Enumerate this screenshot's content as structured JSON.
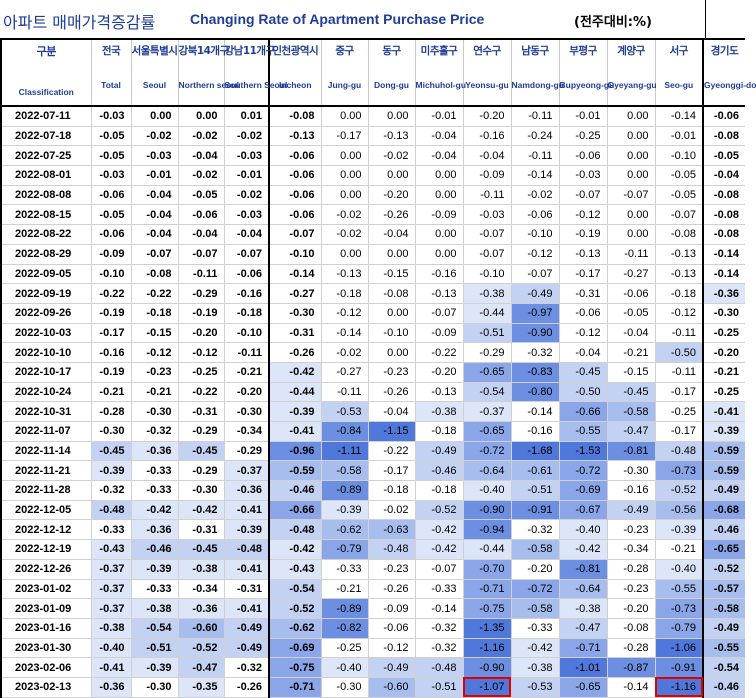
{
  "title": {
    "korean": "아파트 매매가격증감률",
    "english": "Changing Rate of Apartment Purchase Price",
    "unit": "(전주대비:%)"
  },
  "columns": [
    {
      "key": "date",
      "kr": "구분",
      "en": "Classification"
    },
    {
      "key": "national",
      "kr": "전국",
      "en": "Total"
    },
    {
      "key": "seoul",
      "kr": "서울특별시",
      "en": "Seoul"
    },
    {
      "key": "gangbuk",
      "kr": "강북14개구",
      "en": "Northern seoul"
    },
    {
      "key": "gangnam",
      "kr": "강남11개구",
      "en": "Southern Seoul"
    },
    {
      "key": "incheon",
      "kr": "인천광역시",
      "en": "Incheon"
    },
    {
      "key": "junggu",
      "kr": "중구",
      "en": "Jung-gu"
    },
    {
      "key": "donggu",
      "kr": "동구",
      "en": "Dong-gu"
    },
    {
      "key": "michuhol",
      "kr": "미추홀구",
      "en": "Michuhol-gu"
    },
    {
      "key": "yeonsu",
      "kr": "연수구",
      "en": "Yeonsu-gu"
    },
    {
      "key": "namdong",
      "kr": "남동구",
      "en": "Namdong-gu"
    },
    {
      "key": "bupyeong",
      "kr": "부평구",
      "en": "Bupyeong-gu"
    },
    {
      "key": "gyeyang",
      "kr": "계양구",
      "en": "Gyeyang-gu"
    },
    {
      "key": "seogu",
      "kr": "서구",
      "en": "Seo-gu"
    },
    {
      "key": "gyeonggi",
      "kr": "경기도",
      "en": "Gyeonggi-do"
    }
  ],
  "colors": {
    "header_text": "#1f3d99",
    "highlight_border": "#e00000",
    "heat_scale": [
      "#ffffff",
      "#dde6f8",
      "#c3d2f3",
      "#a6bdee",
      "#8aa6e8",
      "#6d8fe2",
      "#5078db"
    ]
  },
  "rows": [
    {
      "date": "2022-07-11",
      "values": [
        "-0.03",
        "0.00",
        "0.00",
        "0.01",
        "-0.08",
        "0.00",
        "0.00",
        "-0.01",
        "-0.20",
        "-0.11",
        "-0.01",
        "0.00",
        "-0.14",
        "-0.06"
      ]
    },
    {
      "date": "2022-07-18",
      "values": [
        "-0.05",
        "-0.02",
        "-0.02",
        "-0.02",
        "-0.13",
        "-0.17",
        "-0.13",
        "-0.04",
        "-0.16",
        "-0.24",
        "-0.25",
        "0.00",
        "-0.01",
        "-0.08"
      ]
    },
    {
      "date": "2022-07-25",
      "values": [
        "-0.05",
        "-0.03",
        "-0.04",
        "-0.03",
        "-0.06",
        "0.00",
        "-0.02",
        "-0.04",
        "-0.04",
        "-0.11",
        "-0.06",
        "0.00",
        "-0.10",
        "-0.05"
      ]
    },
    {
      "date": "2022-08-01",
      "values": [
        "-0.03",
        "-0.01",
        "-0.02",
        "-0.01",
        "-0.06",
        "0.00",
        "0.00",
        "0.00",
        "-0.09",
        "-0.14",
        "-0.03",
        "0.00",
        "-0.05",
        "-0.04"
      ]
    },
    {
      "date": "2022-08-08",
      "values": [
        "-0.06",
        "-0.04",
        "-0.05",
        "-0.02",
        "-0.06",
        "0.00",
        "-0.20",
        "0.00",
        "-0.11",
        "-0.02",
        "-0.07",
        "-0.07",
        "-0.05",
        "-0.08"
      ]
    },
    {
      "date": "2022-08-15",
      "values": [
        "-0.05",
        "-0.04",
        "-0.06",
        "-0.03",
        "-0.06",
        "-0.02",
        "-0.26",
        "-0.09",
        "-0.03",
        "-0.06",
        "-0.12",
        "0.00",
        "-0.07",
        "-0.08"
      ]
    },
    {
      "date": "2022-08-22",
      "values": [
        "-0.06",
        "-0.04",
        "-0.04",
        "-0.04",
        "-0.07",
        "-0.02",
        "-0.04",
        "0.00",
        "-0.07",
        "-0.10",
        "-0.19",
        "0.00",
        "-0.08",
        "-0.08"
      ]
    },
    {
      "date": "2022-08-29",
      "values": [
        "-0.09",
        "-0.07",
        "-0.07",
        "-0.07",
        "-0.10",
        "0.00",
        "0.00",
        "0.00",
        "-0.07",
        "-0.12",
        "-0.13",
        "-0.11",
        "-0.13",
        "-0.14"
      ]
    },
    {
      "date": "2022-09-05",
      "values": [
        "-0.10",
        "-0.08",
        "-0.11",
        "-0.06",
        "-0.14",
        "-0.13",
        "-0.15",
        "-0.16",
        "-0.10",
        "-0.07",
        "-0.17",
        "-0.27",
        "-0.13",
        "-0.14"
      ]
    },
    {
      "date": "2022-09-19",
      "values": [
        "-0.22",
        "-0.22",
        "-0.29",
        "-0.16",
        "-0.27",
        "-0.18",
        "-0.08",
        "-0.13",
        "-0.38",
        "-0.49",
        "-0.31",
        "-0.06",
        "-0.18",
        "-0.36"
      ]
    },
    {
      "date": "2022-09-26",
      "values": [
        "-0.19",
        "-0.18",
        "-0.19",
        "-0.18",
        "-0.30",
        "-0.12",
        "0.00",
        "-0.07",
        "-0.44",
        "-0.97",
        "-0.06",
        "-0.05",
        "-0.12",
        "-0.30"
      ]
    },
    {
      "date": "2022-10-03",
      "values": [
        "-0.17",
        "-0.15",
        "-0.20",
        "-0.10",
        "-0.31",
        "-0.14",
        "-0.10",
        "-0.09",
        "-0.51",
        "-0.90",
        "-0.12",
        "-0.04",
        "-0.11",
        "-0.25"
      ]
    },
    {
      "date": "2022-10-10",
      "values": [
        "-0.16",
        "-0.12",
        "-0.12",
        "-0.11",
        "-0.26",
        "-0.02",
        "0.00",
        "-0.22",
        "-0.29",
        "-0.32",
        "-0.04",
        "-0.21",
        "-0.50",
        "-0.20"
      ]
    },
    {
      "date": "2022-10-17",
      "values": [
        "-0.19",
        "-0.23",
        "-0.25",
        "-0.21",
        "-0.42",
        "-0.27",
        "-0.23",
        "-0.20",
        "-0.65",
        "-0.83",
        "-0.45",
        "-0.15",
        "-0.11",
        "-0.21"
      ]
    },
    {
      "date": "2022-10-24",
      "values": [
        "-0.21",
        "-0.21",
        "-0.22",
        "-0.20",
        "-0.44",
        "-0.11",
        "-0.26",
        "-0.13",
        "-0.54",
        "-0.80",
        "-0.50",
        "-0.45",
        "-0.17",
        "-0.25"
      ]
    },
    {
      "date": "2022-10-31",
      "values": [
        "-0.28",
        "-0.30",
        "-0.31",
        "-0.30",
        "-0.39",
        "-0.53",
        "-0.04",
        "-0.38",
        "-0.37",
        "-0.14",
        "-0.66",
        "-0.58",
        "-0.25",
        "-0.41"
      ]
    },
    {
      "date": "2022-11-07",
      "values": [
        "-0.30",
        "-0.32",
        "-0.29",
        "-0.34",
        "-0.41",
        "-0.84",
        "-1.15",
        "-0.18",
        "-0.65",
        "-0.16",
        "-0.55",
        "-0.47",
        "-0.17",
        "-0.39"
      ]
    },
    {
      "date": "2022-11-14",
      "values": [
        "-0.45",
        "-0.36",
        "-0.45",
        "-0.29",
        "-0.96",
        "-1.11",
        "-0.22",
        "-0.49",
        "-0.72",
        "-1.68",
        "-1.53",
        "-0.81",
        "-0.48",
        "-0.59"
      ]
    },
    {
      "date": "2022-11-21",
      "values": [
        "-0.39",
        "-0.33",
        "-0.29",
        "-0.37",
        "-0.59",
        "-0.58",
        "-0.17",
        "-0.46",
        "-0.64",
        "-0.61",
        "-0.72",
        "-0.30",
        "-0.73",
        "-0.59"
      ]
    },
    {
      "date": "2022-11-28",
      "values": [
        "-0.32",
        "-0.33",
        "-0.30",
        "-0.36",
        "-0.46",
        "-0.89",
        "-0.18",
        "-0.18",
        "-0.40",
        "-0.51",
        "-0.69",
        "-0.16",
        "-0.52",
        "-0.49"
      ]
    },
    {
      "date": "2022-12-05",
      "values": [
        "-0.48",
        "-0.42",
        "-0.42",
        "-0.41",
        "-0.66",
        "-0.39",
        "-0.02",
        "-0.52",
        "-0.90",
        "-0.91",
        "-0.67",
        "-0.49",
        "-0.56",
        "-0.68"
      ]
    },
    {
      "date": "2022-12-12",
      "values": [
        "-0.33",
        "-0.36",
        "-0.31",
        "-0.39",
        "-0.48",
        "-0.62",
        "-0.63",
        "-0.42",
        "-0.94",
        "-0.32",
        "-0.40",
        "-0.23",
        "-0.39",
        "-0.46"
      ]
    },
    {
      "date": "2022-12-19",
      "values": [
        "-0.43",
        "-0.46",
        "-0.45",
        "-0.48",
        "-0.42",
        "-0.79",
        "-0.48",
        "-0.42",
        "-0.44",
        "-0.58",
        "-0.42",
        "-0.34",
        "-0.21",
        "-0.65"
      ]
    },
    {
      "date": "2022-12-26",
      "values": [
        "-0.37",
        "-0.39",
        "-0.38",
        "-0.41",
        "-0.43",
        "-0.33",
        "-0.23",
        "-0.07",
        "-0.70",
        "-0.20",
        "-0.81",
        "-0.28",
        "-0.40",
        "-0.52"
      ]
    },
    {
      "date": "2023-01-02",
      "values": [
        "-0.37",
        "-0.33",
        "-0.34",
        "-0.31",
        "-0.54",
        "-0.21",
        "-0.26",
        "-0.33",
        "-0.71",
        "-0.72",
        "-0.64",
        "-0.23",
        "-0.55",
        "-0.57"
      ]
    },
    {
      "date": "2023-01-09",
      "values": [
        "-0.37",
        "-0.38",
        "-0.36",
        "-0.41",
        "-0.52",
        "-0.89",
        "-0.09",
        "-0.14",
        "-0.75",
        "-0.58",
        "-0.38",
        "-0.20",
        "-0.73",
        "-0.58"
      ]
    },
    {
      "date": "2023-01-16",
      "values": [
        "-0.38",
        "-0.54",
        "-0.60",
        "-0.49",
        "-0.62",
        "-0.82",
        "-0.06",
        "-0.32",
        "-1.35",
        "-0.33",
        "-0.47",
        "-0.08",
        "-0.79",
        "-0.49"
      ]
    },
    {
      "date": "2023-01-30",
      "values": [
        "-0.40",
        "-0.51",
        "-0.52",
        "-0.49",
        "-0.69",
        "-0.25",
        "-0.12",
        "-0.32",
        "-1.16",
        "-0.42",
        "-0.71",
        "-0.28",
        "-1.06",
        "-0.55"
      ]
    },
    {
      "date": "2023-02-06",
      "values": [
        "-0.41",
        "-0.39",
        "-0.47",
        "-0.32",
        "-0.75",
        "-0.40",
        "-0.49",
        "-0.48",
        "-0.90",
        "-0.38",
        "-1.01",
        "-0.87",
        "-0.91",
        "-0.54"
      ]
    },
    {
      "date": "2023-02-13",
      "values": [
        "-0.36",
        "-0.30",
        "-0.35",
        "-0.26",
        "-0.71",
        "-0.30",
        "-0.60",
        "-0.51",
        "-1.07",
        "-0.53",
        "-0.65",
        "-0.14",
        "-1.16",
        "-0.46"
      ]
    }
  ],
  "highlighted_cells": [
    {
      "row": "2023-02-13",
      "column": "yeonsu"
    },
    {
      "row": "2023-02-13",
      "column": "seogu"
    }
  ]
}
